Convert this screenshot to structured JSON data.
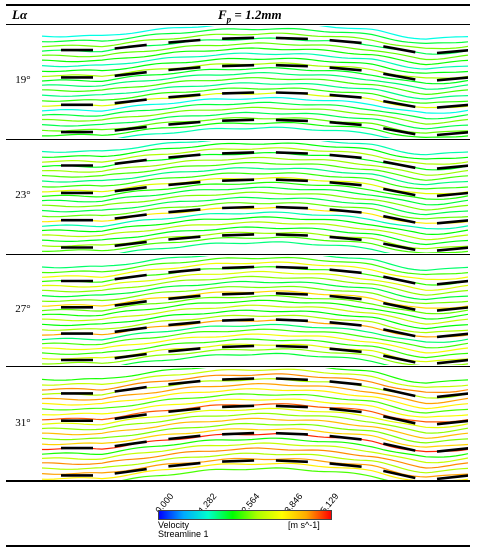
{
  "header": {
    "left_label": "Lα",
    "title": "F_p = 1.2mm",
    "title_var": "F",
    "title_sub": "p",
    "title_rest": " = 1.2mm"
  },
  "panels": [
    {
      "label": "19°",
      "angle": 19,
      "intensity": 0.5
    },
    {
      "label": "23°",
      "angle": 23,
      "intensity": 0.6
    },
    {
      "label": "27°",
      "angle": 27,
      "intensity": 0.72
    },
    {
      "label": "31°",
      "angle": 31,
      "intensity": 0.95
    }
  ],
  "legend": {
    "ticks": [
      "0.000",
      "1.282",
      "2.564",
      "3.846",
      "5.129"
    ],
    "variable": "Velocity",
    "streamline": "Streamline 1",
    "units": "[m s^-1]",
    "colors": [
      "#0000ff",
      "#00aaff",
      "#00ffcc",
      "#00ff00",
      "#aaff00",
      "#ffff00",
      "#ffaa00",
      "#ff0000"
    ]
  },
  "colors": {
    "louver": "#000000",
    "rule": "#000000",
    "background": "#ffffff"
  }
}
